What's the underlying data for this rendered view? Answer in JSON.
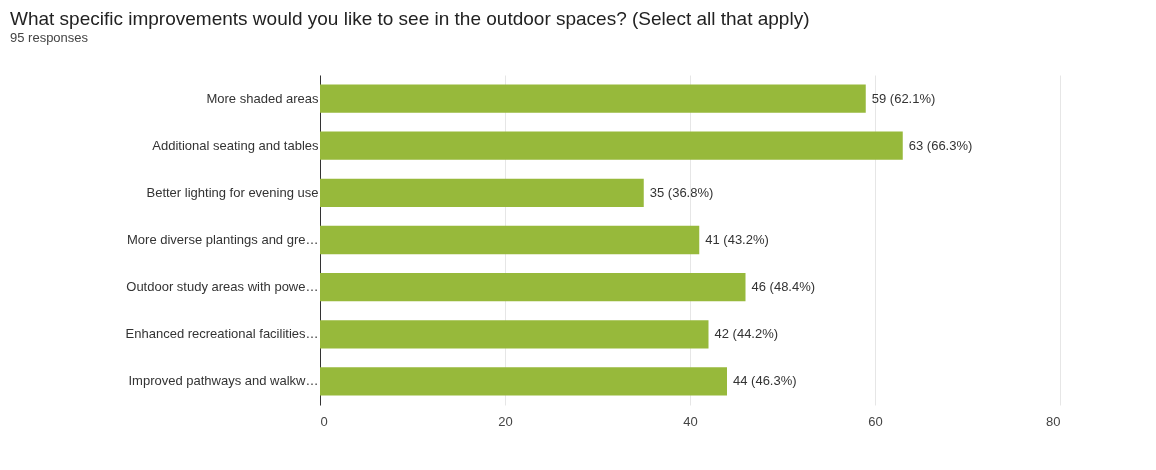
{
  "chart_data": {
    "type": "bar",
    "orientation": "horizontal",
    "title": "What specific improvements would you like to see in the outdoor spaces? (Select all that apply)",
    "subtitle": "95 responses",
    "categories": [
      "More shaded areas",
      "Additional seating and tables",
      "Better lighting for evening use",
      "More diverse plantings and gre…",
      "Outdoor study areas with powe…",
      "Enhanced recreational facilities…",
      "Improved pathways and walkw…"
    ],
    "values": [
      59,
      63,
      35,
      41,
      46,
      42,
      44
    ],
    "value_labels": [
      "59 (62.1%)",
      "63 (66.3%)",
      "35 (36.8%)",
      "41 (43.2%)",
      "46 (48.4%)",
      "42 (44.2%)",
      "44 (46.3%)"
    ],
    "color": "#97b93b",
    "xlim": [
      0,
      80
    ],
    "xticks": [
      0,
      20,
      40,
      60,
      80
    ],
    "grid": "x"
  }
}
